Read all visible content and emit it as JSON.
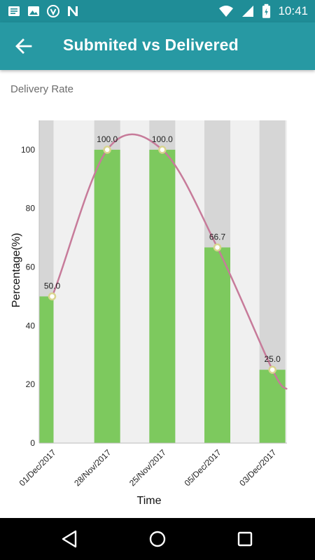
{
  "status_bar": {
    "time": "10:41",
    "left_icons": [
      "message-icon",
      "image-icon",
      "shield-icon",
      "n-logo-icon"
    ],
    "right_icons": [
      "wifi-icon",
      "signal-icon",
      "battery-icon"
    ]
  },
  "app_bar": {
    "title": "Submited vs Delivered",
    "back_icon": "arrow-left-icon"
  },
  "section": {
    "label": "Delivery Rate"
  },
  "colors": {
    "app_bar": "#2799a3",
    "status_bar": "#1f8d97",
    "bar": "#7dc95e",
    "line": "#c77b9a"
  },
  "chart_data": {
    "type": "bar",
    "categories": [
      "01/Dec/2017",
      "28/Nov/2017",
      "25/Nov/2017",
      "05/Dec/2017",
      "03/Dec/2017"
    ],
    "values": [
      50.0,
      100.0,
      100.0,
      66.7,
      25.0
    ],
    "value_labels": [
      "50.0",
      "100.0",
      "100.0",
      "66.7",
      "25.0"
    ],
    "xlabel": "Time",
    "ylabel": "Percentage(%)",
    "ylim": [
      0,
      110
    ],
    "yticks": [
      "0",
      "20",
      "40",
      "60",
      "80",
      "100"
    ],
    "ytick_values": [
      0,
      20,
      40,
      60,
      80,
      100
    ],
    "overlay": "smoothed-line",
    "grid": false
  },
  "nav_bar": {
    "buttons": [
      "back-triangle-icon",
      "home-circle-icon",
      "recents-square-icon"
    ]
  }
}
